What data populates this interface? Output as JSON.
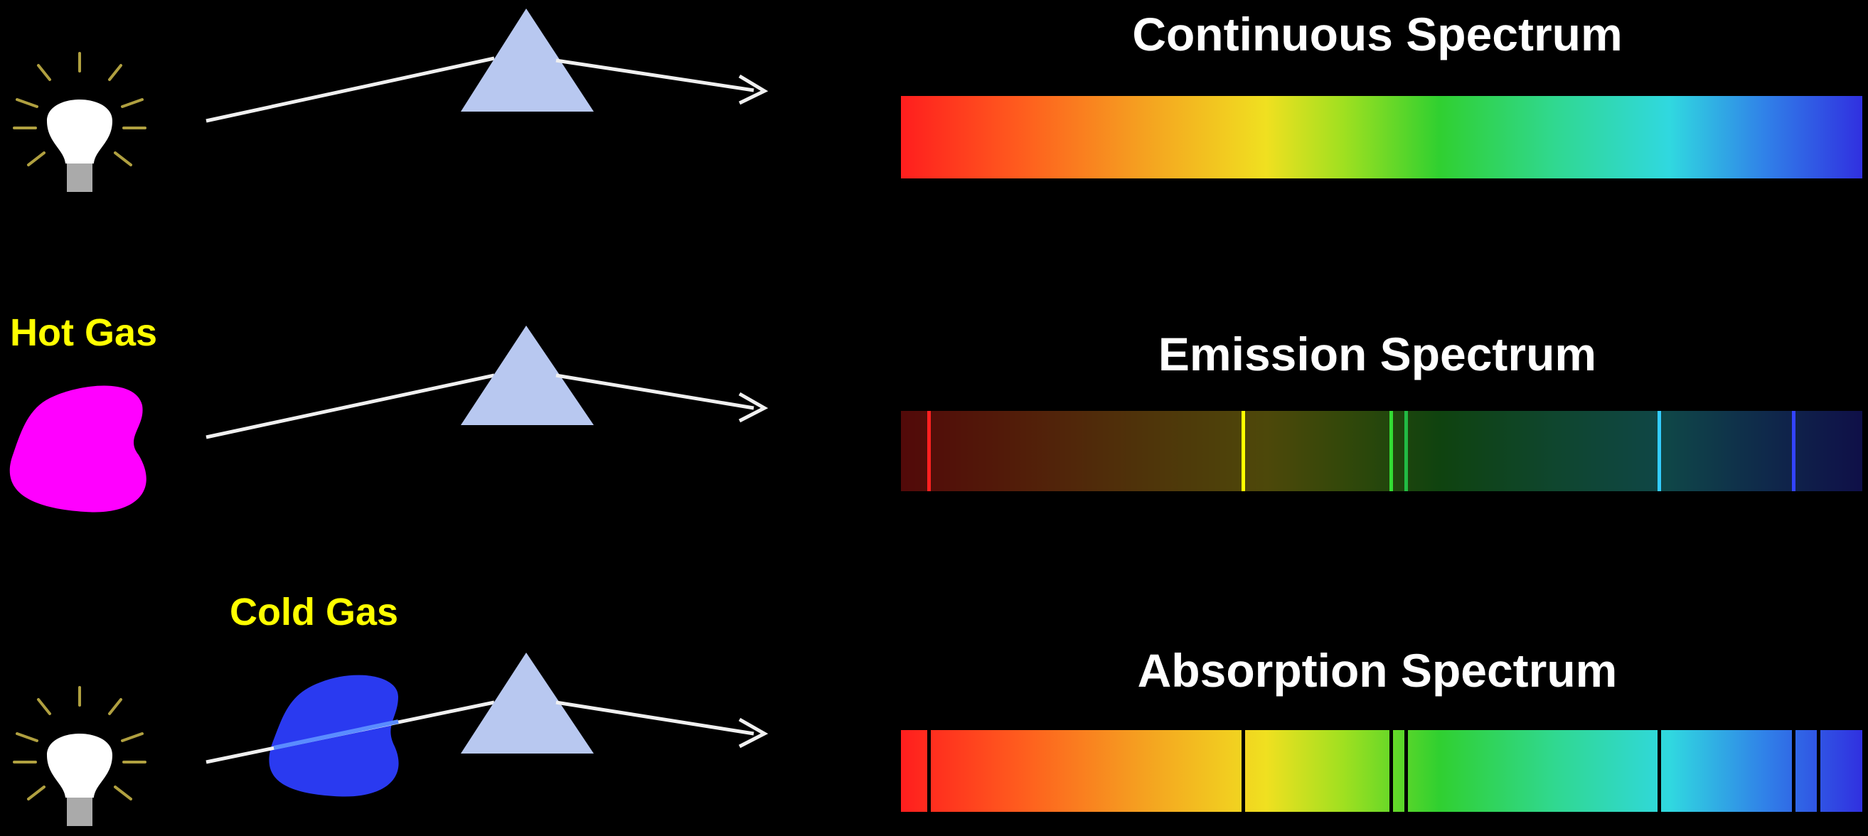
{
  "rows": [
    {
      "title": "Continuous Spectrum",
      "source": "lightbulb-icon",
      "gas_label": "",
      "spectrum_type": "continuous",
      "lines": []
    },
    {
      "title": "Emission Spectrum",
      "source": "hot-gas-cloud",
      "gas_label": "Hot Gas",
      "gas_color": "#ff00ff",
      "spectrum_type": "emission",
      "lines": [
        {
          "pos": 0.027,
          "color": "#ff2020"
        },
        {
          "pos": 0.354,
          "color": "#ffff00"
        },
        {
          "pos": 0.508,
          "color": "#33dd33"
        },
        {
          "pos": 0.524,
          "color": "#22bb44"
        },
        {
          "pos": 0.787,
          "color": "#33ccff"
        },
        {
          "pos": 0.927,
          "color": "#3344ff"
        }
      ]
    },
    {
      "title": "Absorption Spectrum",
      "source": "lightbulb-icon",
      "gas_label": "Cold Gas",
      "gas_color": "#2a3af0",
      "spectrum_type": "absorption",
      "lines": [
        {
          "pos": 0.027,
          "color": "#000000"
        },
        {
          "pos": 0.354,
          "color": "#000000"
        },
        {
          "pos": 0.508,
          "color": "#000000"
        },
        {
          "pos": 0.524,
          "color": "#000000"
        },
        {
          "pos": 0.787,
          "color": "#000000"
        },
        {
          "pos": 0.927,
          "color": "#000000"
        },
        {
          "pos": 0.953,
          "color": "#000000"
        }
      ]
    }
  ],
  "colors": {
    "background": "#000000",
    "title": "#ffffff",
    "gas_label": "#ffff00",
    "prism": "#b8c8f0",
    "ray": "#f0f0f0",
    "bulb": "#ffffff",
    "bulb_base": "#aaaaaa",
    "bulb_rays": "#b0a040"
  }
}
